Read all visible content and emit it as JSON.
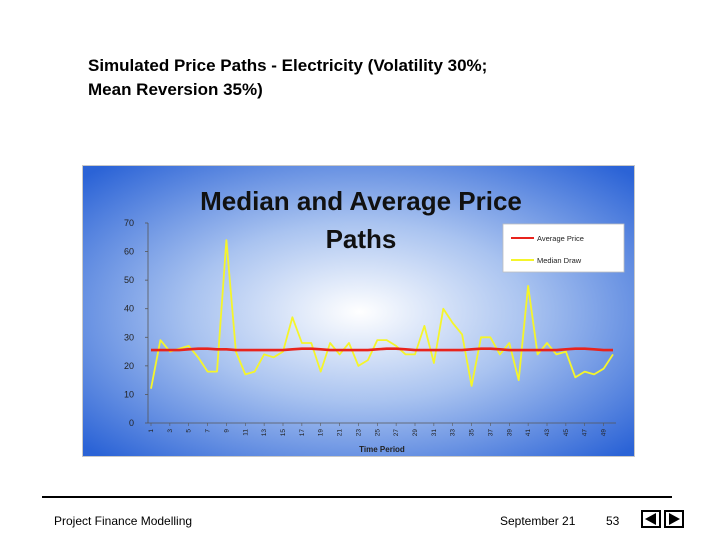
{
  "slide": {
    "title_line1": "Simulated Price Paths - Electricity (Volatility 30%;",
    "title_line2": "Mean Reversion 35%)"
  },
  "footer": {
    "left": "Project Finance Modelling",
    "date": "September 21",
    "page": "53"
  },
  "colors": {
    "average": "#e8231c",
    "median": "#f5f52a",
    "background_center": "#ffffff",
    "background_edge": "#2b63d6"
  },
  "icons": {
    "prev": "triangle-left-icon",
    "next": "triangle-right-icon"
  },
  "chart_data": {
    "type": "line",
    "title_line1": "Median and Average Price",
    "title_line2": "Paths",
    "xlabel": "Time Period",
    "ylabel": "",
    "ylim": [
      0,
      70
    ],
    "yticks": [
      0,
      10,
      20,
      30,
      40,
      50,
      60,
      70
    ],
    "x": [
      1,
      2,
      3,
      4,
      5,
      6,
      7,
      8,
      9,
      10,
      11,
      12,
      13,
      14,
      15,
      16,
      17,
      18,
      19,
      20,
      21,
      22,
      23,
      24,
      25,
      26,
      27,
      28,
      29,
      30,
      31,
      32,
      33,
      34,
      35,
      36,
      37,
      38,
      39,
      40,
      41,
      42,
      43,
      44,
      45,
      46,
      47,
      48,
      49,
      50
    ],
    "xtick_labels": [
      "1",
      "3",
      "5",
      "7",
      "9",
      "11",
      "13",
      "15",
      "17",
      "19",
      "21",
      "23",
      "25",
      "27",
      "29",
      "31",
      "33",
      "35",
      "37",
      "39",
      "41",
      "43",
      "45",
      "47",
      "49"
    ],
    "grid": false,
    "legend_position": "top-right",
    "series": [
      {
        "name": "Average Price",
        "values": [
          25.5,
          25.5,
          25.5,
          25.5,
          25.8,
          26,
          26,
          25.8,
          25.8,
          25.5,
          25.5,
          25.5,
          25.5,
          25.5,
          25.5,
          25.8,
          26,
          26,
          25.8,
          25.5,
          25.5,
          25.5,
          25.5,
          25.5,
          25.8,
          26,
          26,
          25.8,
          25.5,
          25.5,
          25.5,
          25.5,
          25.5,
          25.5,
          25.8,
          26,
          26,
          25.8,
          25.5,
          25.5,
          25.5,
          25.5,
          25.5,
          25.5,
          25.8,
          26,
          26,
          25.8,
          25.5,
          25.5
        ]
      },
      {
        "name": "Median Draw",
        "values": [
          12,
          29,
          25,
          26,
          27,
          23,
          18,
          18,
          64,
          25,
          17,
          18,
          24,
          23,
          25,
          37,
          28,
          28,
          18,
          28,
          24,
          28,
          20,
          22,
          29,
          29,
          27,
          24,
          24,
          34,
          21,
          40,
          35,
          31,
          13,
          30,
          30,
          24,
          28,
          15,
          48,
          24,
          28,
          24,
          25,
          16,
          18,
          17,
          19,
          24
        ]
      }
    ]
  }
}
